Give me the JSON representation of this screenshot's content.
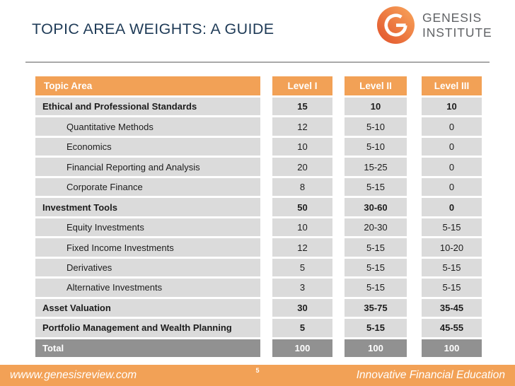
{
  "slide": {
    "title": "TOPIC AREA WEIGHTS: A GUIDE"
  },
  "logo": {
    "monogram": "G",
    "name_line1": "GENESIS",
    "name_line2": "INSTITUTE"
  },
  "table": {
    "columns": [
      "Topic Area",
      "Level I",
      "Level II",
      "Level III"
    ],
    "rows": [
      {
        "label": "Ethical and Professional Standards",
        "indent": false,
        "bold": true,
        "total": false,
        "values": [
          "15",
          "10",
          "10"
        ]
      },
      {
        "label": "Quantitative Methods",
        "indent": true,
        "bold": false,
        "total": false,
        "values": [
          "12",
          "5-10",
          "0"
        ]
      },
      {
        "label": "Economics",
        "indent": true,
        "bold": false,
        "total": false,
        "values": [
          "10",
          "5-10",
          "0"
        ]
      },
      {
        "label": "Financial Reporting and Analysis",
        "indent": true,
        "bold": false,
        "total": false,
        "values": [
          "20",
          "15-25",
          "0"
        ]
      },
      {
        "label": "Corporate Finance",
        "indent": true,
        "bold": false,
        "total": false,
        "values": [
          "8",
          "5-15",
          "0"
        ]
      },
      {
        "label": "Investment Tools",
        "indent": false,
        "bold": true,
        "total": false,
        "values": [
          "50",
          "30-60",
          "0"
        ]
      },
      {
        "label": "Equity Investments",
        "indent": true,
        "bold": false,
        "total": false,
        "values": [
          "10",
          "20-30",
          "5-15"
        ]
      },
      {
        "label": "Fixed Income Investments",
        "indent": true,
        "bold": false,
        "total": false,
        "values": [
          "12",
          "5-15",
          "10-20"
        ]
      },
      {
        "label": "Derivatives",
        "indent": true,
        "bold": false,
        "total": false,
        "values": [
          "5",
          "5-15",
          "5-15"
        ]
      },
      {
        "label": "Alternative Investments",
        "indent": true,
        "bold": false,
        "total": false,
        "values": [
          "3",
          "5-15",
          "5-15"
        ]
      },
      {
        "label": "Asset Valuation",
        "indent": false,
        "bold": true,
        "total": false,
        "values": [
          "30",
          "35-75",
          "35-45"
        ]
      },
      {
        "label": "Portfolio Management and Wealth Planning",
        "indent": false,
        "bold": true,
        "total": false,
        "values": [
          "5",
          "5-15",
          "45-55"
        ]
      },
      {
        "label": "Total",
        "indent": false,
        "bold": true,
        "total": true,
        "values": [
          "100",
          "100",
          "100"
        ]
      }
    ]
  },
  "footer": {
    "website": "wwww.genesisreview.com",
    "page_number": "5",
    "tagline": "Innovative Financial Education"
  },
  "colors": {
    "accent_orange": "#F2A156",
    "row_gray": "#DBDBDB",
    "total_row_gray": "#919191",
    "title_navy": "#1F3B57",
    "logo_gradient_dark": "#E1512A",
    "logo_gradient_light": "#F9A75C",
    "logo_text_gray": "#616366",
    "divider_gray": "#A9A9A9"
  }
}
